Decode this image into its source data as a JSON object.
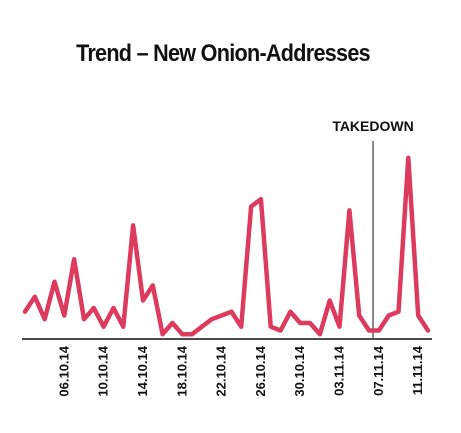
{
  "chart_data": {
    "type": "line",
    "title": "Trend – New Onion-Addresses",
    "xlabel": "",
    "ylabel": "",
    "x_tick_labels": [
      "06.10.14",
      "10.10.14",
      "14.10.14",
      "18.10.14",
      "22.10.14",
      "26.10.14",
      "30.10.14",
      "03.11.14",
      "07.11.14",
      "11.11.14"
    ],
    "x": [
      "02.10.14",
      "03.10.14",
      "04.10.14",
      "05.10.14",
      "06.10.14",
      "07.10.14",
      "08.10.14",
      "09.10.14",
      "10.10.14",
      "11.10.14",
      "12.10.14",
      "13.10.14",
      "14.10.14",
      "15.10.14",
      "16.10.14",
      "17.10.14",
      "18.10.14",
      "19.10.14",
      "20.10.14",
      "21.10.14",
      "22.10.14",
      "23.10.14",
      "24.10.14",
      "25.10.14",
      "26.10.14",
      "27.10.14",
      "28.10.14",
      "29.10.14",
      "30.10.14",
      "31.10.14",
      "01.11.14",
      "02.11.14",
      "03.11.14",
      "04.11.14",
      "05.11.14",
      "06.11.14",
      "07.11.14",
      "08.11.14",
      "09.11.14",
      "10.11.14",
      "11.11.14",
      "12.11.14"
    ],
    "series": [
      {
        "color": "#dd3b5e",
        "values": [
          7,
          11,
          5,
          15,
          6,
          21,
          5,
          8,
          3,
          8,
          3,
          30,
          10,
          14,
          1,
          4,
          1,
          1,
          3,
          5,
          6,
          7,
          3,
          35,
          37,
          3,
          2,
          7,
          4,
          4,
          1,
          10,
          3,
          34,
          6,
          2,
          2,
          6,
          7,
          48,
          6,
          2
        ]
      }
    ],
    "ylim": [
      0,
      65
    ],
    "grid": false,
    "legend": "none",
    "annotations": [
      {
        "label": "TAKEDOWN",
        "x": "06.11.14"
      }
    ]
  }
}
